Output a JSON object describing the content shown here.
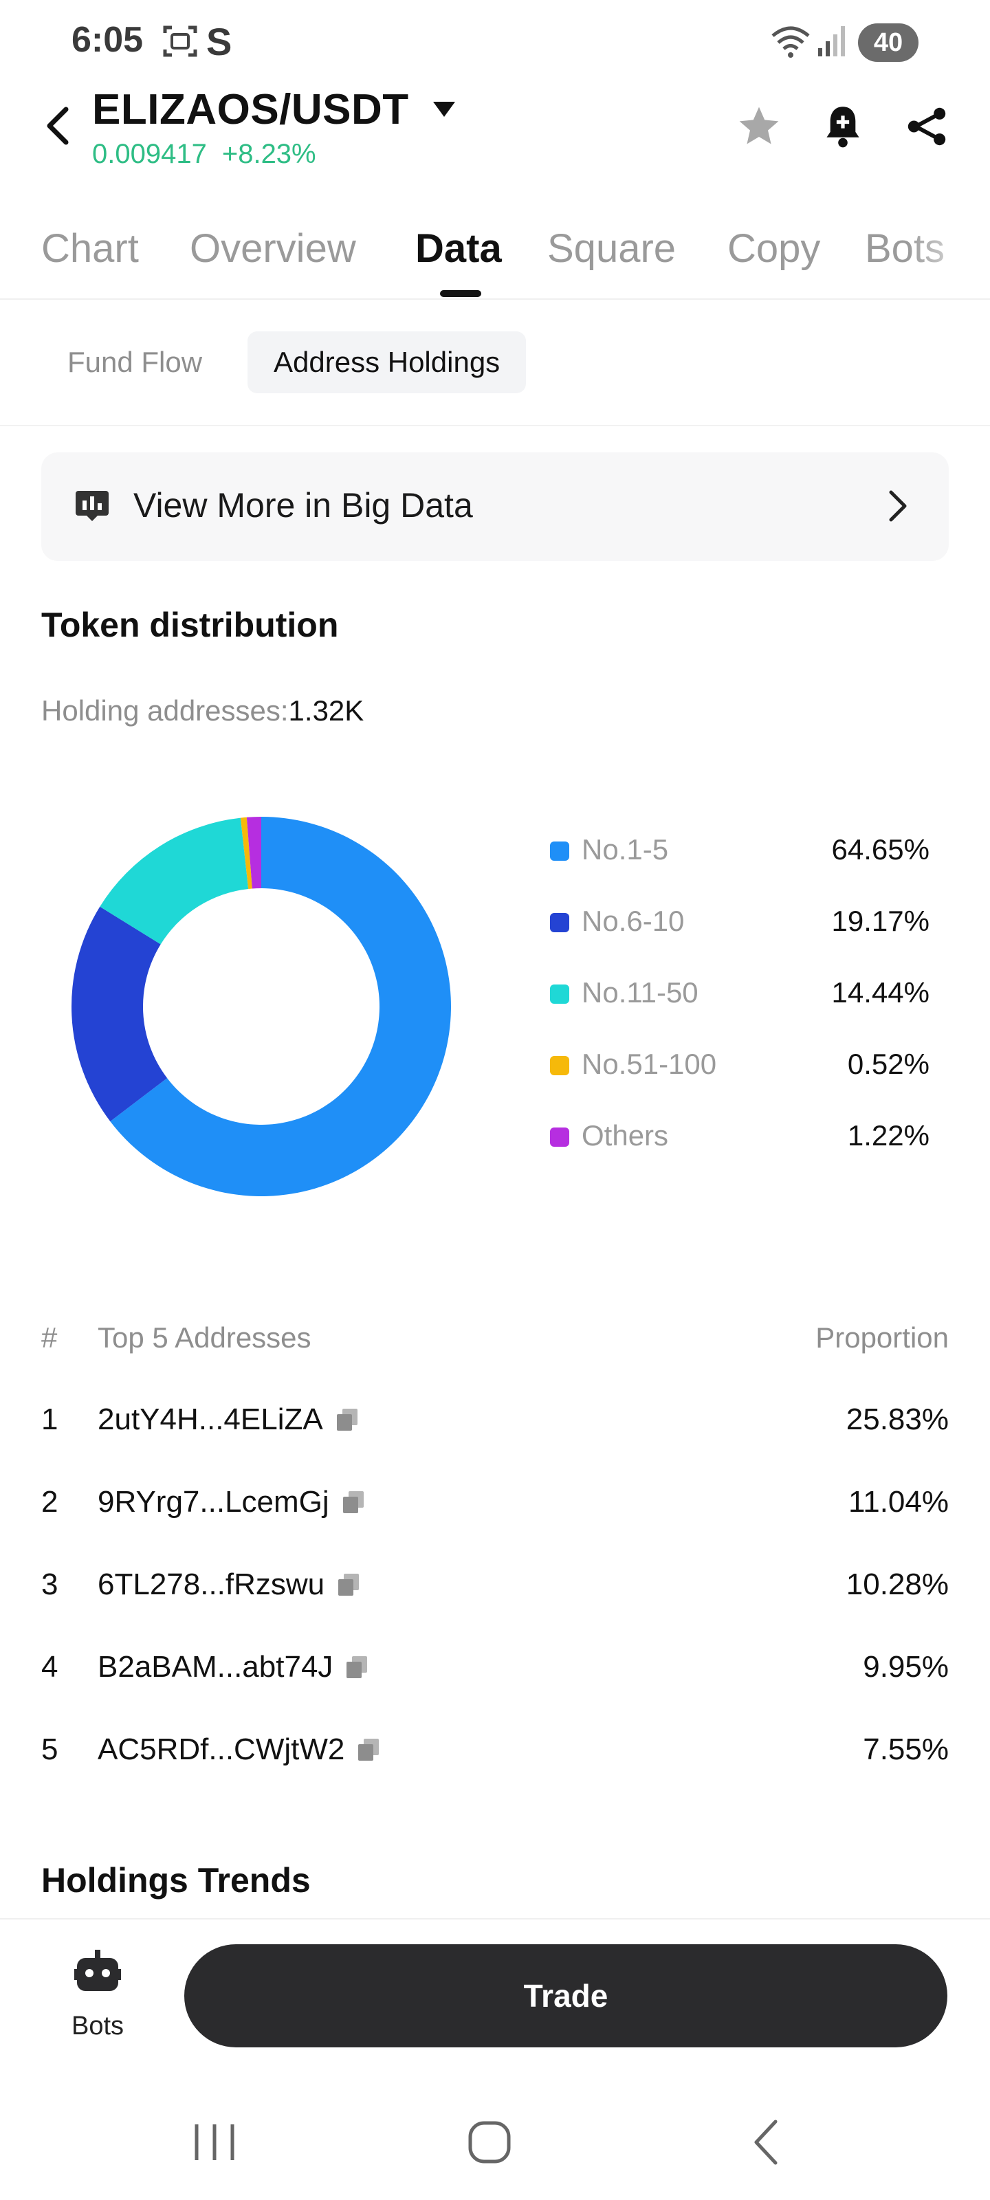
{
  "status_bar": {
    "time": "6:05",
    "battery": "40",
    "extra_glyph": "S"
  },
  "header": {
    "pair": "ELIZAOS/USDT",
    "price": "0.009417",
    "change": "+8.23%",
    "price_color": "#2ebd85"
  },
  "tabs": [
    {
      "label": "Chart"
    },
    {
      "label": "Overview"
    },
    {
      "label": "Data"
    },
    {
      "label": "Square"
    },
    {
      "label": "Copy"
    },
    {
      "label": "Bots"
    }
  ],
  "active_tab": "Data",
  "subtabs": [
    {
      "label": "Fund Flow"
    },
    {
      "label": "Address Holdings"
    }
  ],
  "active_subtab": "Address Holdings",
  "banner": {
    "label": "View More in Big Data"
  },
  "token_distribution": {
    "title": "Token distribution",
    "holding_label": "Holding addresses:",
    "holding_value": "1.32K"
  },
  "chart_data": {
    "type": "pie",
    "style": "donut",
    "categories": [
      "No.1-5",
      "No.6-10",
      "No.11-50",
      "No.51-100",
      "Others"
    ],
    "values": [
      64.65,
      19.17,
      14.44,
      0.52,
      1.22
    ],
    "value_labels": [
      "64.65%",
      "19.17%",
      "14.44%",
      "0.52%",
      "1.22%"
    ],
    "colors": [
      "#1f8ff7",
      "#2443d3",
      "#1fd8d6",
      "#f6b90a",
      "#b62ee0"
    ],
    "legend_position": "right"
  },
  "top_addresses": {
    "col_num": "#",
    "col_address": "Top 5 Addresses",
    "col_proportion": "Proportion",
    "rows": [
      {
        "rank": "1",
        "address": "2utY4H...4ELiZA",
        "proportion": "25.83%"
      },
      {
        "rank": "2",
        "address": "9RYrg7...LcemGj",
        "proportion": "11.04%"
      },
      {
        "rank": "3",
        "address": "6TL278...fRzswu",
        "proportion": "10.28%"
      },
      {
        "rank": "4",
        "address": "B2aBAM...abt74J",
        "proportion": "9.95%"
      },
      {
        "rank": "5",
        "address": "AC5RDf...CWjtW2",
        "proportion": "7.55%"
      }
    ]
  },
  "holdings_trends": {
    "title": "Holdings Trends"
  },
  "bottom_bar": {
    "bots_label": "Bots",
    "trade_label": "Trade"
  },
  "icons": {
    "back": "back-arrow-icon",
    "caret": "caret-down-icon",
    "favorite": "star-icon",
    "alert": "bell-plus-icon",
    "share": "share-icon",
    "big_data": "chart-board-icon",
    "chevron": "chevron-right-icon",
    "copy": "copy-icon",
    "bots": "robot-icon"
  }
}
